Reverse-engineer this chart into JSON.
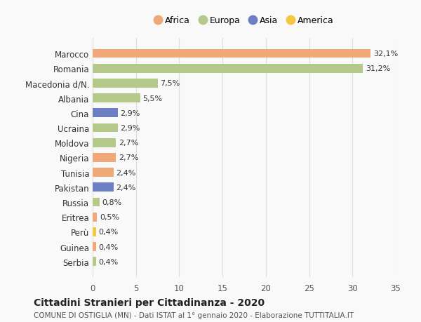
{
  "countries": [
    "Marocco",
    "Romania",
    "Macedonia d/N.",
    "Albania",
    "Cina",
    "Ucraina",
    "Moldova",
    "Nigeria",
    "Tunisia",
    "Pakistan",
    "Russia",
    "Eritrea",
    "Perù",
    "Guinea",
    "Serbia"
  ],
  "values": [
    32.1,
    31.2,
    7.5,
    5.5,
    2.9,
    2.9,
    2.7,
    2.7,
    2.4,
    2.4,
    0.8,
    0.5,
    0.4,
    0.4,
    0.4
  ],
  "labels": [
    "32,1%",
    "31,2%",
    "7,5%",
    "5,5%",
    "2,9%",
    "2,9%",
    "2,7%",
    "2,7%",
    "2,4%",
    "2,4%",
    "0,8%",
    "0,5%",
    "0,4%",
    "0,4%",
    "0,4%"
  ],
  "colors": [
    "#f0a878",
    "#b5c98a",
    "#b5c98a",
    "#b5c98a",
    "#6b7fc2",
    "#b5c98a",
    "#b5c98a",
    "#f0a878",
    "#f0a878",
    "#6b7fc2",
    "#b5c98a",
    "#f0a878",
    "#f5c842",
    "#f0a878",
    "#b5c98a"
  ],
  "legend_labels": [
    "Africa",
    "Europa",
    "Asia",
    "America"
  ],
  "legend_colors": [
    "#f0a878",
    "#b5c98a",
    "#6b7fc2",
    "#f5c842"
  ],
  "title": "Cittadini Stranieri per Cittadinanza - 2020",
  "subtitle": "COMUNE DI OSTIGLIA (MN) - Dati ISTAT al 1° gennaio 2020 - Elaborazione TUTTITALIA.IT",
  "xlim": [
    0,
    35
  ],
  "xticks": [
    0,
    5,
    10,
    15,
    20,
    25,
    30,
    35
  ],
  "background_color": "#f9f9f9",
  "grid_color": "#dddddd",
  "bar_height": 0.6
}
